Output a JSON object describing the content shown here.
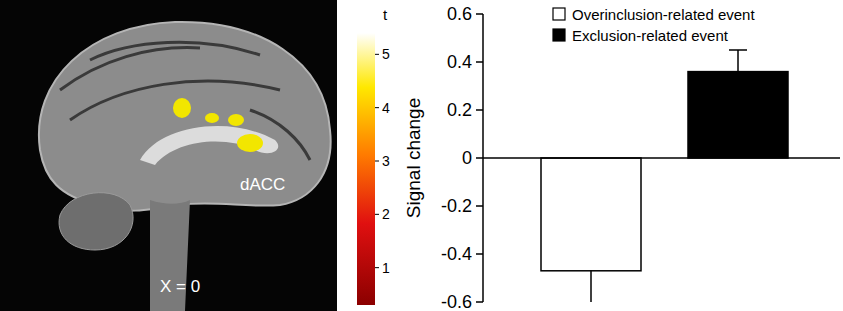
{
  "chart_data": {
    "type": "bar",
    "y_label": "Signal change",
    "categories": [
      null
    ],
    "series": [
      {
        "name": "Overinclusion-related event",
        "color": "#ffffff",
        "values": [
          -0.47
        ],
        "errors": [
          0.15
        ]
      },
      {
        "name": "Exclusion-related event",
        "color": "#000000",
        "values": [
          0.36
        ],
        "errors": [
          0.09
        ]
      }
    ],
    "ylim": [
      -0.6,
      0.6
    ],
    "yticks": [
      -0.6,
      -0.4,
      -0.2,
      0,
      0.2,
      0.4,
      0.6
    ],
    "legend": "top-left",
    "tick_labels": "y"
  },
  "brain_image": {
    "label": "dACC",
    "slice_label": "X = 0",
    "colorbar": {
      "title": "t",
      "range": [
        0.3,
        5.4
      ],
      "ticks": [
        1,
        2,
        3,
        4,
        5
      ]
    }
  }
}
